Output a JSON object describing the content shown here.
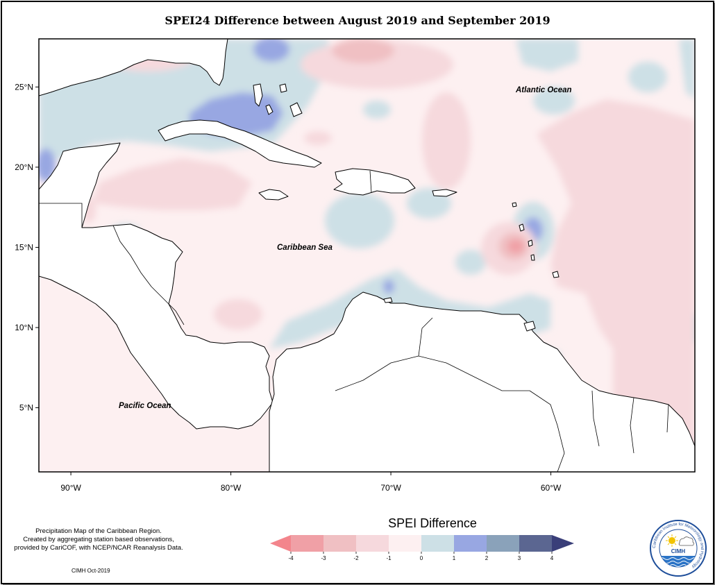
{
  "title": "SPEI24 Difference between August 2019 and September 2019",
  "map": {
    "lon_range": [
      -92,
      -51
    ],
    "lat_range": [
      1,
      28
    ],
    "x_ticks": [
      {
        "value": -90,
        "label": "90°W"
      },
      {
        "value": -80,
        "label": "80°W"
      },
      {
        "value": -70,
        "label": "70°W"
      },
      {
        "value": -60,
        "label": "60°W"
      }
    ],
    "y_ticks": [
      {
        "value": 25,
        "label": "25°N"
      },
      {
        "value": 20,
        "label": "20°N"
      },
      {
        "value": 15,
        "label": "15°N"
      },
      {
        "value": 10,
        "label": "10°N"
      },
      {
        "value": 5,
        "label": "5°N"
      }
    ],
    "labels": {
      "atlantic": "Atlantic Ocean",
      "caribbean": "Caribbean Sea",
      "pacific": "Pacific Ocean"
    }
  },
  "legend": {
    "title": "SPEI Difference",
    "ticks": [
      "-4",
      "-3",
      "-2",
      "-1",
      "0",
      "1",
      "2",
      "3",
      "4"
    ],
    "colors": [
      "#f0a0a6",
      "#f0c0c3",
      "#f6d9dd",
      "#fdf0f1",
      "#cde0e6",
      "#98a7e2",
      "#8aa2ba",
      "#5b6691"
    ],
    "end_low": "#f3858c",
    "end_high": "#3a3f79"
  },
  "credits": {
    "lines": [
      "Precipitation Map of the Caribbean Region.",
      "Created by aggregating station based observations,",
      "provided by CariCOF, with NCEP/NCAR Reanalysis Data."
    ],
    "date": "CIMH Oct-2019"
  },
  "logo": {
    "text": "CIMH",
    "ring_text": "Caribbean Institute for Meteorology and Hydrology"
  }
}
